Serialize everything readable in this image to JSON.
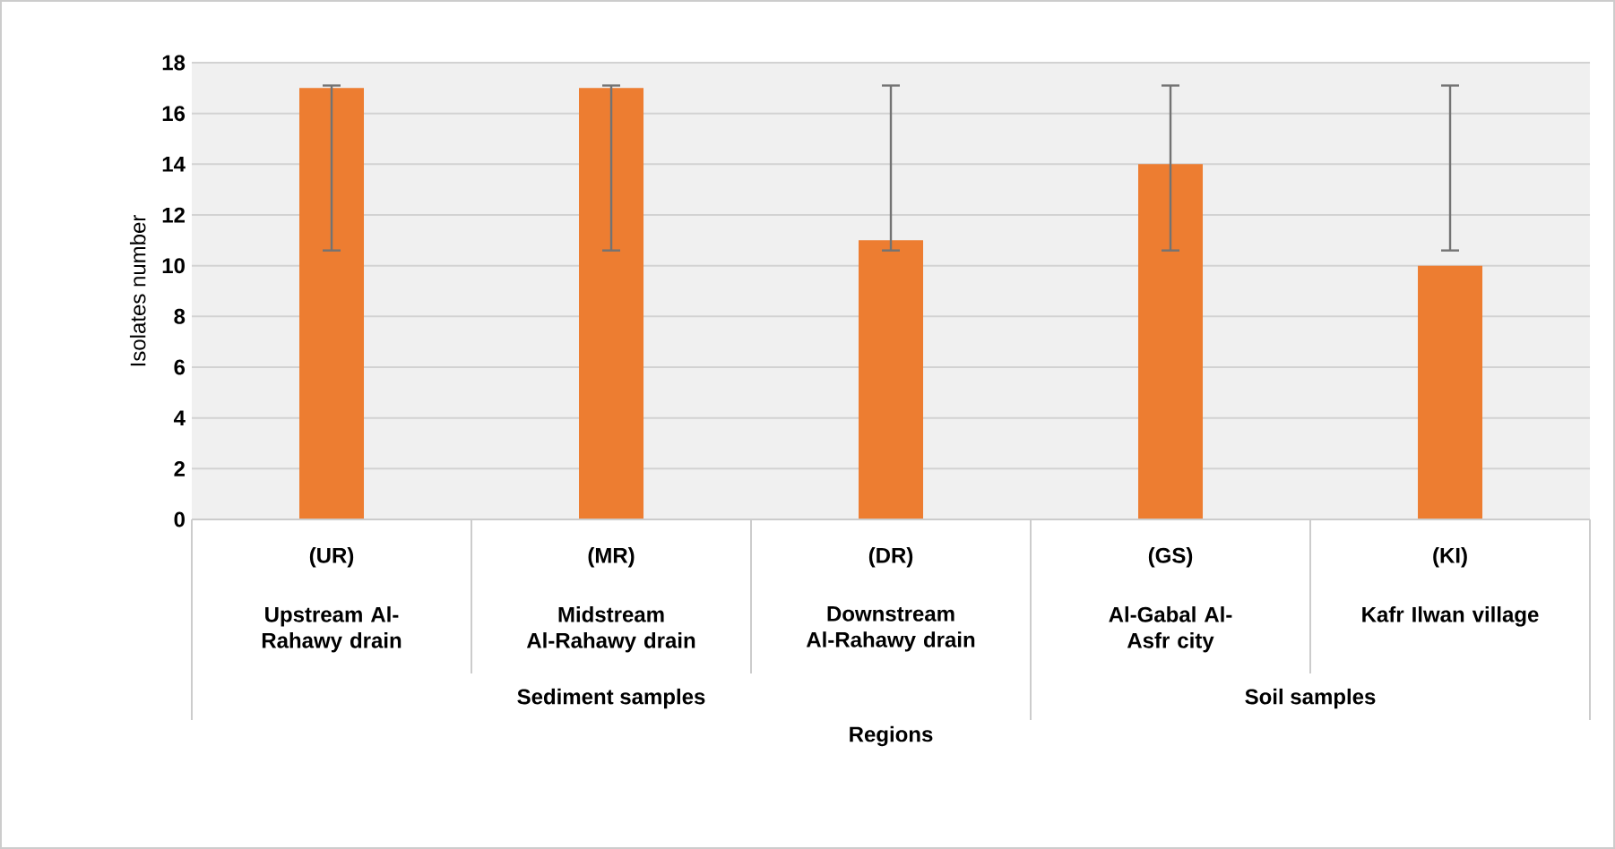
{
  "chart_data": {
    "type": "bar",
    "categories": [
      "(UR)",
      "(MR)",
      "(DR)",
      "(GS)",
      "(KI)"
    ],
    "values": [
      17,
      17,
      11,
      14,
      10
    ],
    "errors": [
      [
        10.6,
        17.1
      ],
      [
        10.6,
        17.1
      ],
      [
        10.6,
        17.1
      ],
      [
        10.6,
        17.1
      ],
      [
        10.6,
        17.1
      ]
    ],
    "color": "#ed7d31",
    "ylabel": "Isolates number",
    "ylim": [
      0,
      18
    ],
    "yticks": [
      0,
      2,
      4,
      6,
      8,
      10,
      12,
      14,
      16,
      18
    ],
    "grid": "y",
    "annotations": [
      "Upstream Al-Rahawy drain",
      "Midstream Al-Rahawy drain",
      "Downstream Al-Rahawy drain",
      "Al-Gabal Al-Asfr city",
      "Kafr Ilwan village",
      "Sediment samples",
      "Soil samples",
      "Regions"
    ]
  }
}
